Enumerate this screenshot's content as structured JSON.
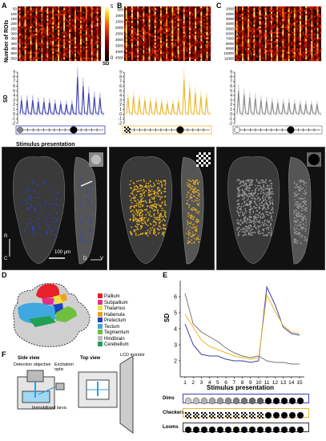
{
  "panels": {
    "A": "A",
    "B": "B",
    "C": "C",
    "D": "D",
    "E": "E",
    "F": "F"
  },
  "heatmap": {
    "ylabel": "Number of ROIs",
    "colorbar_ticks": [
      "5",
      "0"
    ],
    "colorbar_label": "SD",
    "ticks_a": [
      "50",
      "100",
      "150",
      "200",
      "250",
      "300",
      "350",
      "400",
      "450",
      "500",
      "550"
    ],
    "ticks_b": [
      "500",
      "1000",
      "1500",
      "2000",
      "2500",
      "3000",
      "3500",
      "4000",
      "4500"
    ],
    "ticks_c": [
      "1000",
      "2000",
      "3000",
      "4000",
      "5000",
      "6000",
      "7000",
      "8000",
      "9000",
      "10000",
      "11000"
    ]
  },
  "traces": {
    "ylabel": "SD",
    "yticks": [
      "9",
      "8",
      "7",
      "6",
      "5",
      "4",
      "3",
      "2",
      "1",
      "0",
      "-1",
      "-2"
    ],
    "stimulus_label": "Stimulus presentation",
    "colors": {
      "dims": "#3a3fb0",
      "checkers": "#e8b82a",
      "looms": "#888888"
    }
  },
  "brain": {
    "compass_r": "R",
    "compass_c": "C",
    "compass_d": "D",
    "compass_v": "V",
    "scale": "100 μm"
  },
  "regions": {
    "items": [
      {
        "label": "Pallium",
        "color": "#e8202a"
      },
      {
        "label": "Subpallium",
        "color": "#e0308a"
      },
      {
        "label": "Thalamus",
        "color": "#f0e040"
      },
      {
        "label": "Habenula",
        "color": "#f0a020"
      },
      {
        "label": "Pretectum",
        "color": "#2040c0"
      },
      {
        "label": "Tectum",
        "color": "#40a8e0"
      },
      {
        "label": "Tegmentum",
        "color": "#70c040"
      },
      {
        "label": "Hindbrain",
        "color": "#bbbbbb"
      },
      {
        "label": "Cerebellum",
        "color": "#20a050"
      }
    ]
  },
  "chart_data": {
    "type": "line",
    "ylabel": "SD",
    "xlabel": "Stimulus presentation",
    "x": [
      1,
      2,
      3,
      4,
      5,
      6,
      7,
      8,
      9,
      10,
      11,
      12,
      13,
      14,
      15
    ],
    "ylim": [
      1,
      7
    ],
    "yticks": [
      2,
      3,
      4,
      5,
      6
    ],
    "series": [
      {
        "name": "Dims",
        "color": "#3a3fb0",
        "values": [
          4.3,
          3.0,
          2.4,
          2.3,
          2.3,
          2.1,
          2.0,
          2.0,
          1.9,
          2.0,
          6.6,
          5.5,
          4.1,
          3.7,
          3.6
        ]
      },
      {
        "name": "Checkers",
        "color": "#e8b82a",
        "values": [
          4.9,
          4.1,
          3.3,
          2.9,
          2.7,
          2.5,
          2.3,
          2.2,
          2.1,
          2.2,
          6.1,
          5.1,
          4.2,
          3.8,
          3.7
        ]
      },
      {
        "name": "Looms",
        "color": "#777777",
        "values": [
          6.2,
          4.3,
          3.8,
          3.5,
          3.2,
          2.8,
          2.5,
          2.3,
          2.2,
          2.3,
          2.0,
          1.9,
          1.9,
          1.8,
          1.8
        ]
      }
    ]
  },
  "stimuli": {
    "dims": "Dims",
    "checkers": "Checkers",
    "looms": "Looms"
  },
  "setup": {
    "side_view": "Side view",
    "top_view": "Top view",
    "detection": "Detection objective",
    "excitation": "Excitation optic",
    "lcd": "LCD monitor",
    "larva": "Immobilised larva"
  }
}
